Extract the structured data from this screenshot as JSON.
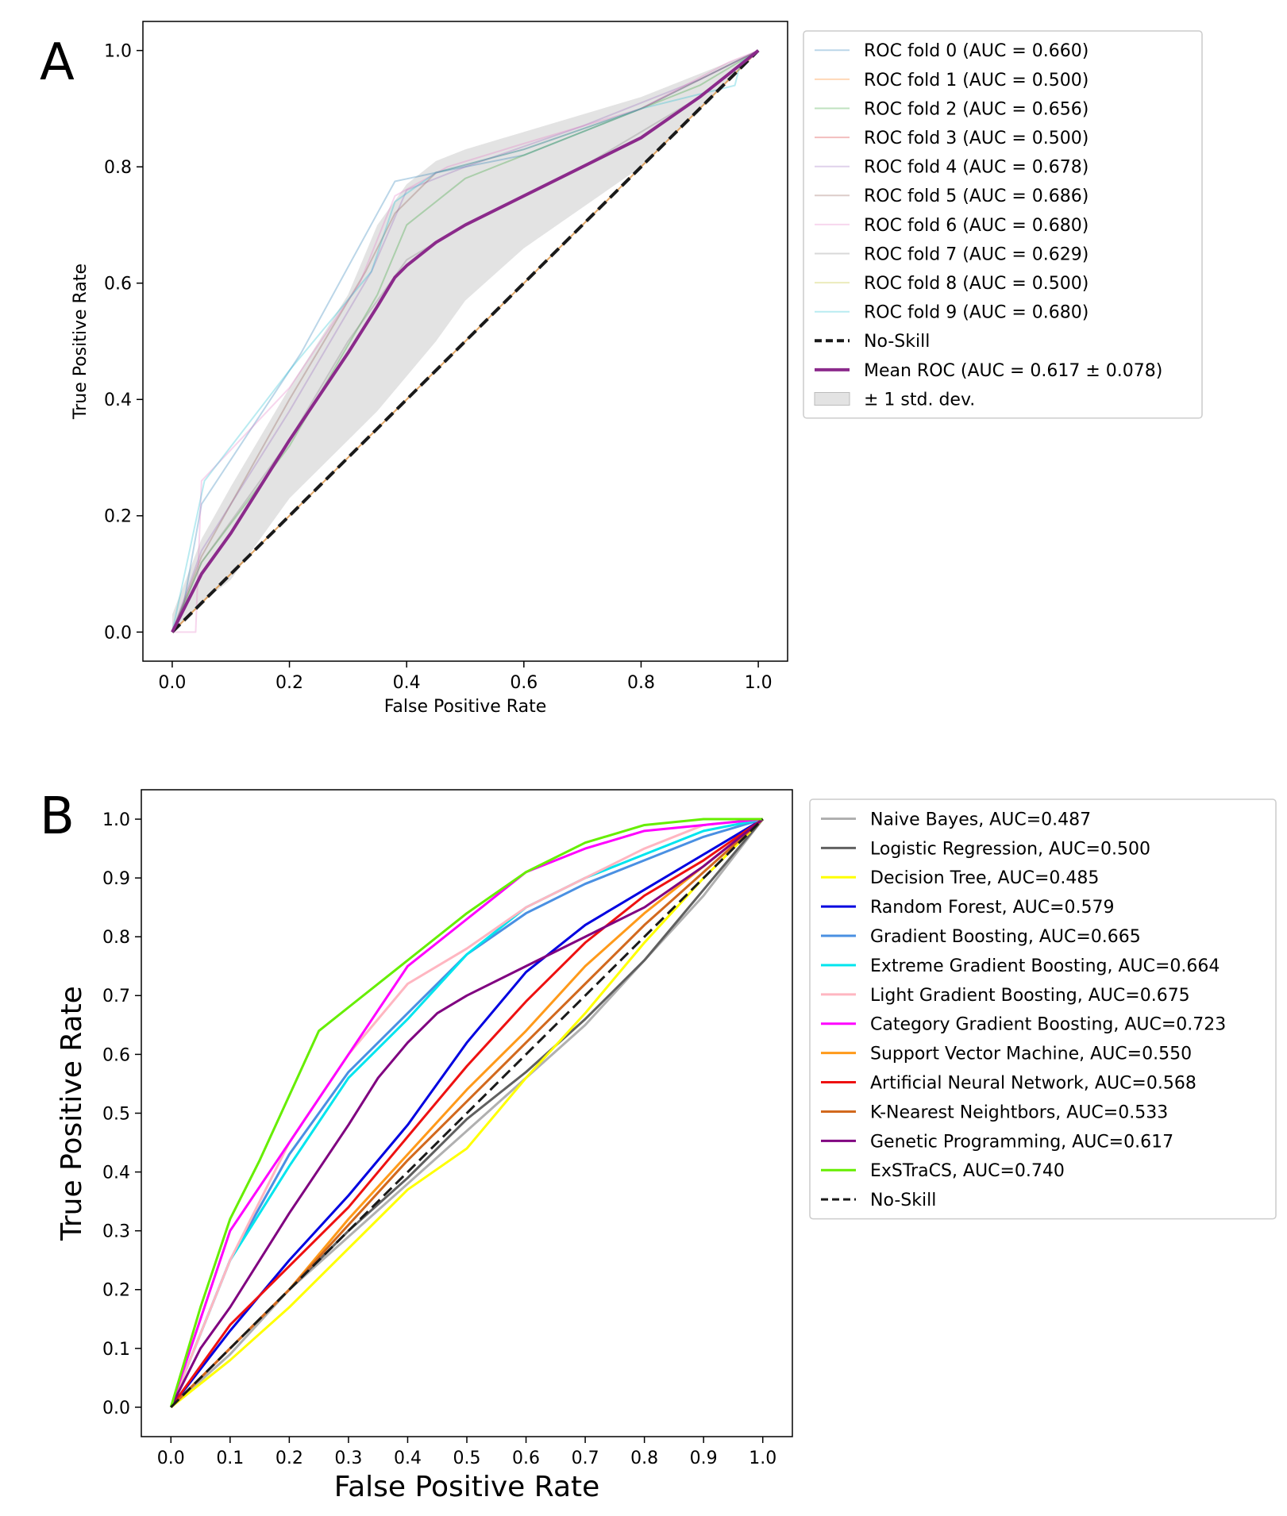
{
  "chart_data": [
    {
      "panel_label": "A",
      "type": "line",
      "title": "",
      "xlabel": "False Positive Rate",
      "ylabel": "True Positive Rate",
      "xlim": [
        -0.05,
        1.05
      ],
      "ylim": [
        -0.05,
        1.05
      ],
      "xticks": [
        0.0,
        0.2,
        0.4,
        0.6,
        0.8,
        1.0
      ],
      "xtick_labels": [
        "0.0",
        "0.2",
        "0.4",
        "0.6",
        "0.8",
        "1.0"
      ],
      "yticks": [
        0.0,
        0.2,
        0.4,
        0.6,
        0.8,
        1.0
      ],
      "ytick_labels": [
        "0.0",
        "0.2",
        "0.4",
        "0.6",
        "0.8",
        "1.0"
      ],
      "legend_position": "outside-right-top",
      "series": [
        {
          "name": "ROC fold 0 (AUC = 0.660)",
          "color": "#1f77b4",
          "opacity": 0.3,
          "width": 2,
          "style": "solid",
          "x": [
            0,
            0.02,
            0.05,
            0.22,
            0.35,
            0.38,
            0.45,
            0.6,
            0.8,
            1.0
          ],
          "y": [
            0,
            0.05,
            0.22,
            0.48,
            0.72,
            0.775,
            0.79,
            0.82,
            0.9,
            1.0
          ]
        },
        {
          "name": "ROC fold 1 (AUC = 0.500)",
          "color": "#ff7f0e",
          "opacity": 0.3,
          "width": 2,
          "style": "solid",
          "x": [
            0,
            1
          ],
          "y": [
            0,
            1
          ]
        },
        {
          "name": "ROC fold 2 (AUC = 0.656)",
          "color": "#2ca02c",
          "opacity": 0.3,
          "width": 2,
          "style": "solid",
          "x": [
            0,
            0.05,
            0.2,
            0.35,
            0.4,
            0.5,
            0.7,
            0.9,
            1.0
          ],
          "y": [
            0,
            0.12,
            0.32,
            0.58,
            0.7,
            0.78,
            0.86,
            0.94,
            1.0
          ]
        },
        {
          "name": "ROC fold 3 (AUC = 0.500)",
          "color": "#d62728",
          "opacity": 0.3,
          "width": 2,
          "style": "solid",
          "x": [
            0,
            1
          ],
          "y": [
            0,
            1
          ]
        },
        {
          "name": "ROC fold 4 (AUC = 0.678)",
          "color": "#9467bd",
          "opacity": 0.3,
          "width": 2,
          "style": "solid",
          "x": [
            0,
            0.05,
            0.2,
            0.34,
            0.4,
            0.5,
            0.7,
            0.9,
            1.0
          ],
          "y": [
            0,
            0.14,
            0.38,
            0.62,
            0.76,
            0.8,
            0.87,
            0.95,
            1.0
          ]
        },
        {
          "name": "ROC fold 5 (AUC = 0.686)",
          "color": "#8c564b",
          "opacity": 0.3,
          "width": 2,
          "style": "solid",
          "x": [
            0,
            0.05,
            0.2,
            0.33,
            0.38,
            0.45,
            0.6,
            0.8,
            1.0
          ],
          "y": [
            0,
            0.13,
            0.4,
            0.62,
            0.72,
            0.79,
            0.83,
            0.9,
            1.0
          ]
        },
        {
          "name": "ROC fold 6 (AUC = 0.680)",
          "color": "#e377c2",
          "opacity": 0.3,
          "width": 2,
          "style": "solid",
          "x": [
            0,
            0.04,
            0.05,
            0.2,
            0.32,
            0.38,
            0.47,
            0.6,
            0.8,
            0.95,
            1.0
          ],
          "y": [
            0,
            0,
            0.26,
            0.42,
            0.6,
            0.75,
            0.8,
            0.84,
            0.9,
            0.98,
            1.0
          ]
        },
        {
          "name": "ROC fold 7 (AUC = 0.629)",
          "color": "#7f7f7f",
          "opacity": 0.3,
          "width": 2,
          "style": "solid",
          "x": [
            0,
            0.05,
            0.2,
            0.3,
            0.4,
            0.5,
            0.7,
            0.9,
            1.0
          ],
          "y": [
            0,
            0.12,
            0.33,
            0.5,
            0.64,
            0.7,
            0.8,
            0.92,
            1.0
          ]
        },
        {
          "name": "ROC fold 8 (AUC = 0.500)",
          "color": "#bcbd22",
          "opacity": 0.3,
          "width": 2,
          "style": "solid",
          "x": [
            0,
            1
          ],
          "y": [
            0,
            1
          ]
        },
        {
          "name": "ROC fold 9 (AUC = 0.680)",
          "color": "#17becf",
          "opacity": 0.3,
          "width": 2,
          "style": "solid",
          "x": [
            0,
            0.055,
            0.2,
            0.34,
            0.38,
            0.45,
            0.6,
            0.8,
            0.96,
            0.97,
            1.0
          ],
          "y": [
            0,
            0.26,
            0.45,
            0.62,
            0.74,
            0.79,
            0.83,
            0.9,
            0.94,
            0.98,
            1.0
          ]
        },
        {
          "name": "No-Skill",
          "color": "#1a1a1a",
          "opacity": 1,
          "width": 4,
          "style": "dashed",
          "x": [
            0,
            1
          ],
          "y": [
            0,
            1
          ]
        },
        {
          "name": "Mean ROC (AUC = 0.617 ± 0.078)",
          "color": "#8b2a8b",
          "opacity": 1,
          "width": 4,
          "style": "solid",
          "x": [
            0,
            0.02,
            0.05,
            0.1,
            0.2,
            0.3,
            0.35,
            0.38,
            0.4,
            0.45,
            0.5,
            0.6,
            0.7,
            0.8,
            0.9,
            1.0
          ],
          "y": [
            0,
            0.04,
            0.1,
            0.17,
            0.33,
            0.48,
            0.56,
            0.61,
            0.63,
            0.67,
            0.7,
            0.75,
            0.8,
            0.85,
            0.92,
            1.0
          ]
        }
      ],
      "band": {
        "name": "± 1 std. dev.",
        "color": "#c8c8c8",
        "opacity": 0.5,
        "x": [
          0,
          0.05,
          0.1,
          0.2,
          0.3,
          0.35,
          0.4,
          0.45,
          0.5,
          0.6,
          0.8,
          1.0
        ],
        "upper": [
          0.03,
          0.16,
          0.25,
          0.42,
          0.58,
          0.7,
          0.77,
          0.81,
          0.83,
          0.86,
          0.92,
          1.0
        ],
        "lower": [
          0,
          0.05,
          0.09,
          0.23,
          0.33,
          0.38,
          0.44,
          0.5,
          0.57,
          0.66,
          0.8,
          1.0
        ]
      }
    },
    {
      "panel_label": "B",
      "type": "line",
      "title": "",
      "xlabel": "False Positive Rate",
      "ylabel": "True Positive Rate",
      "xlim": [
        -0.05,
        1.05
      ],
      "ylim": [
        -0.05,
        1.05
      ],
      "xticks": [
        0.0,
        0.1,
        0.2,
        0.3,
        0.4,
        0.5,
        0.6,
        0.7,
        0.8,
        0.9,
        1.0
      ],
      "xtick_labels": [
        "0.0",
        "0.1",
        "0.2",
        "0.3",
        "0.4",
        "0.5",
        "0.6",
        "0.7",
        "0.8",
        "0.9",
        "1.0"
      ],
      "yticks": [
        0.0,
        0.1,
        0.2,
        0.3,
        0.4,
        0.5,
        0.6,
        0.7,
        0.8,
        0.9,
        1.0
      ],
      "ytick_labels": [
        "0.0",
        "0.1",
        "0.2",
        "0.3",
        "0.4",
        "0.5",
        "0.6",
        "0.7",
        "0.8",
        "0.9",
        "1.0"
      ],
      "legend_position": "outside-right-top",
      "series": [
        {
          "name": "Naive Bayes, AUC=0.487",
          "color": "#b0b0b0",
          "width": 3,
          "style": "solid",
          "x": [
            0,
            0.1,
            0.2,
            0.3,
            0.4,
            0.5,
            0.6,
            0.7,
            0.8,
            0.9,
            1.0
          ],
          "y": [
            0,
            0.09,
            0.2,
            0.29,
            0.38,
            0.47,
            0.56,
            0.65,
            0.76,
            0.87,
            1.0
          ]
        },
        {
          "name": "Logistic Regression, AUC=0.500",
          "color": "#606060",
          "width": 3,
          "style": "solid",
          "x": [
            0,
            0.1,
            0.2,
            0.3,
            0.4,
            0.5,
            0.6,
            0.7,
            0.8,
            0.9,
            1.0
          ],
          "y": [
            0,
            0.1,
            0.2,
            0.3,
            0.39,
            0.49,
            0.57,
            0.66,
            0.76,
            0.88,
            1.0
          ]
        },
        {
          "name": "Decision Tree, AUC=0.485",
          "color": "#ffff00",
          "width": 3,
          "style": "solid",
          "x": [
            0,
            0.1,
            0.2,
            0.3,
            0.4,
            0.5,
            0.6,
            0.7,
            0.8,
            0.9,
            1.0
          ],
          "y": [
            0,
            0.08,
            0.17,
            0.27,
            0.37,
            0.44,
            0.56,
            0.67,
            0.79,
            0.9,
            1.0
          ]
        },
        {
          "name": "Random Forest, AUC=0.579",
          "color": "#0000e0",
          "width": 3,
          "style": "solid",
          "x": [
            0,
            0.1,
            0.2,
            0.3,
            0.4,
            0.5,
            0.6,
            0.7,
            0.8,
            0.9,
            1.0
          ],
          "y": [
            0,
            0.13,
            0.25,
            0.36,
            0.48,
            0.62,
            0.74,
            0.82,
            0.88,
            0.94,
            1.0
          ]
        },
        {
          "name": "Gradient Boosting, AUC=0.665",
          "color": "#4a90e2",
          "width": 3,
          "style": "solid",
          "x": [
            0,
            0.1,
            0.2,
            0.3,
            0.4,
            0.5,
            0.6,
            0.7,
            0.8,
            0.9,
            1.0
          ],
          "y": [
            0,
            0.25,
            0.43,
            0.57,
            0.67,
            0.77,
            0.84,
            0.89,
            0.93,
            0.97,
            1.0
          ]
        },
        {
          "name": "Extreme Gradient Boosting, AUC=0.664",
          "color": "#00e5ee",
          "width": 3,
          "style": "solid",
          "x": [
            0,
            0.1,
            0.2,
            0.3,
            0.4,
            0.5,
            0.6,
            0.7,
            0.8,
            0.9,
            1.0
          ],
          "y": [
            0,
            0.25,
            0.41,
            0.56,
            0.66,
            0.77,
            0.85,
            0.9,
            0.94,
            0.98,
            1.0
          ]
        },
        {
          "name": "Light Gradient Boosting, AUC=0.675",
          "color": "#ffb6c1",
          "width": 3,
          "style": "solid",
          "x": [
            0,
            0.1,
            0.2,
            0.3,
            0.4,
            0.5,
            0.6,
            0.7,
            0.8,
            0.9,
            1.0
          ],
          "y": [
            0,
            0.25,
            0.45,
            0.6,
            0.72,
            0.78,
            0.85,
            0.9,
            0.95,
            0.99,
            1.0
          ]
        },
        {
          "name": "Category Gradient Boosting, AUC=0.723",
          "color": "#ff00ff",
          "width": 3,
          "style": "solid",
          "x": [
            0,
            0.1,
            0.2,
            0.3,
            0.4,
            0.5,
            0.6,
            0.7,
            0.8,
            0.9,
            1.0
          ],
          "y": [
            0,
            0.3,
            0.45,
            0.6,
            0.75,
            0.83,
            0.91,
            0.95,
            0.98,
            0.99,
            1.0
          ]
        },
        {
          "name": "Support Vector Machine, AUC=0.550",
          "color": "#ff9a1a",
          "width": 3,
          "style": "solid",
          "x": [
            0,
            0.1,
            0.2,
            0.3,
            0.4,
            0.5,
            0.6,
            0.7,
            0.8,
            0.9,
            1.0
          ],
          "y": [
            0,
            0.1,
            0.2,
            0.32,
            0.43,
            0.54,
            0.64,
            0.75,
            0.84,
            0.92,
            1.0
          ]
        },
        {
          "name": "Artificial Neural Network, AUC=0.568",
          "color": "#ee1111",
          "width": 3,
          "style": "solid",
          "x": [
            0,
            0.1,
            0.2,
            0.3,
            0.4,
            0.5,
            0.6,
            0.7,
            0.8,
            0.9,
            1.0
          ],
          "y": [
            0,
            0.14,
            0.24,
            0.34,
            0.46,
            0.58,
            0.69,
            0.79,
            0.87,
            0.93,
            1.0
          ]
        },
        {
          "name": "K-Nearest Neightbors, AUC=0.533",
          "color": "#d2691e",
          "width": 3,
          "style": "solid",
          "x": [
            0,
            0.1,
            0.2,
            0.3,
            0.4,
            0.5,
            0.6,
            0.7,
            0.8,
            0.9,
            1.0
          ],
          "y": [
            0,
            0.1,
            0.2,
            0.31,
            0.42,
            0.52,
            0.62,
            0.72,
            0.82,
            0.91,
            1.0
          ]
        },
        {
          "name": "Genetic Programming, AUC=0.617",
          "color": "#800080",
          "width": 3,
          "style": "solid",
          "x": [
            0,
            0.05,
            0.1,
            0.2,
            0.3,
            0.35,
            0.4,
            0.45,
            0.5,
            0.6,
            0.7,
            0.8,
            0.9,
            1.0
          ],
          "y": [
            0,
            0.1,
            0.17,
            0.33,
            0.48,
            0.56,
            0.62,
            0.67,
            0.7,
            0.75,
            0.8,
            0.85,
            0.92,
            1.0
          ]
        },
        {
          "name": "ExSTraCS, AUC=0.740",
          "color": "#66ee00",
          "width": 3,
          "style": "solid",
          "x": [
            0,
            0.05,
            0.1,
            0.15,
            0.2,
            0.25,
            0.3,
            0.4,
            0.5,
            0.6,
            0.7,
            0.8,
            0.9,
            1.0
          ],
          "y": [
            0,
            0.17,
            0.32,
            0.42,
            0.53,
            0.64,
            0.68,
            0.76,
            0.84,
            0.91,
            0.96,
            0.99,
            1.0,
            1.0
          ]
        },
        {
          "name": "No-Skill",
          "color": "#1a1a1a",
          "width": 3,
          "style": "dashed",
          "x": [
            0,
            1
          ],
          "y": [
            0,
            1
          ]
        }
      ]
    }
  ]
}
